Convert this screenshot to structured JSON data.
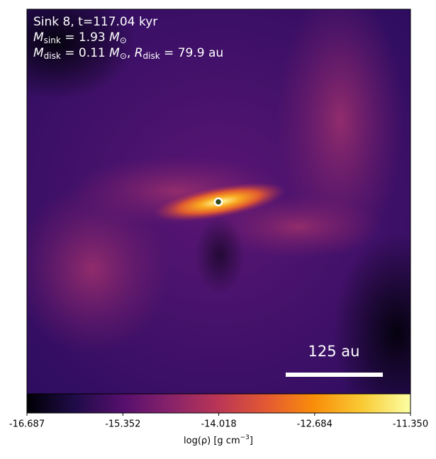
{
  "chart_data": {
    "type": "image",
    "annotation_lines": [
      [
        "Sink 8, t=117.04 kyr"
      ],
      [
        "M",
        "sink",
        " = 1.93 ",
        "M",
        "⊙"
      ],
      [
        "M",
        "disk",
        " = 0.11 ",
        "M",
        "⊙",
        ", ",
        "R",
        "disk",
        " = 79.9 au"
      ]
    ],
    "scale_bar_label": "125 au",
    "colorbar_label": [
      "log(ρ) [g cm",
      "−3",
      "]"
    ],
    "clim": [
      -16.687,
      -11.35
    ],
    "cticks": [
      -16.687,
      -15.352,
      -14.018,
      -12.684,
      {
        "value": -11.35,
        "label": "-11.350"
      }
    ],
    "colormap": [
      "#000004",
      "#1f0c48",
      "#550f6d",
      "#88226a",
      "#ba3655",
      "#e35933",
      "#f98e09",
      "#f9cb35",
      "#fcffa4"
    ]
  }
}
